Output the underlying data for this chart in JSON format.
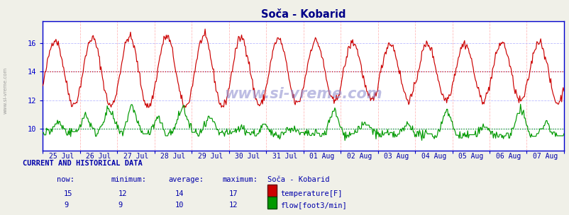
{
  "title": "Soča - Kobarid",
  "title_color": "#000088",
  "bg_color": "#f0f0e8",
  "plot_bg_color": "#ffffff",
  "grid_color_v": "#ffbbbb",
  "grid_color_h": "#bbbbff",
  "avg_line_red": 14.0,
  "avg_line_green": 10.0,
  "avg_line_red_color": "#cc0000",
  "avg_line_green_color": "#009900",
  "red_line_color": "#cc0000",
  "green_line_color": "#009900",
  "axis_color": "#0000cc",
  "tick_color": "#0000aa",
  "ylim": [
    8.5,
    17.5
  ],
  "yticks": [
    10,
    12,
    14,
    16
  ],
  "n_points": 672,
  "date_labels": [
    "25 Jul",
    "26 Jul",
    "27 Jul",
    "28 Jul",
    "29 Jul",
    "30 Jul",
    "31 Jul",
    "01 Aug",
    "02 Aug",
    "03 Aug",
    "04 Aug",
    "05 Aug",
    "06 Aug",
    "07 Aug"
  ],
  "watermark": "www.si-vreme.com",
  "table_header": "CURRENT AND HISTORICAL DATA",
  "col_headers": [
    "now:",
    "minimum:",
    "average:",
    "maximum:",
    "Soča - Kobarid"
  ],
  "temp_row": [
    "15",
    "12",
    "14",
    "17",
    "temperature[F]"
  ],
  "flow_row": [
    "9",
    "9",
    "10",
    "12",
    "flow[foot3/min]"
  ],
  "table_color": "#0000aa",
  "side_label": "www.si-vreme.com"
}
